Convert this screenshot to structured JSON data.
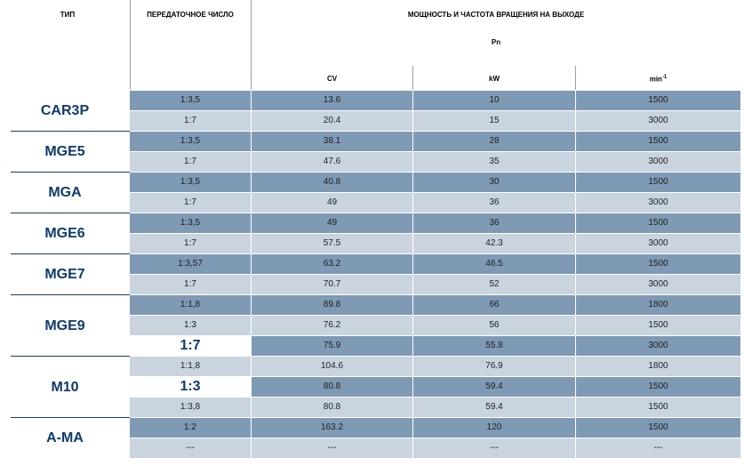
{
  "headers": {
    "type": "ТИП",
    "ratio": "ПЕРЕДАТОЧНОЕ ЧИСЛО",
    "power": "МОЩНОСТЬ И ЧАСТОТА ВРАЩЕНИЯ НА ВЫХОДЕ",
    "pn": "Pn",
    "cv": "CV",
    "kw": "kW",
    "min": "min",
    "min_sup": "-1"
  },
  "groups": [
    {
      "type": "CAR3P",
      "rows": [
        {
          "ratio": "1:3,5",
          "cv": "13.6",
          "kw": "10",
          "rpm": "1500",
          "shade": "dark"
        },
        {
          "ratio": "1:7",
          "cv": "20.4",
          "kw": "15",
          "rpm": "3000",
          "shade": "light"
        }
      ]
    },
    {
      "type": "MGE5",
      "rows": [
        {
          "ratio": "1:3,5",
          "cv": "38.1",
          "kw": "28",
          "rpm": "1500",
          "shade": "dark"
        },
        {
          "ratio": "1:7",
          "cv": "47.6",
          "kw": "35",
          "rpm": "3000",
          "shade": "light"
        }
      ]
    },
    {
      "type": "MGA",
      "rows": [
        {
          "ratio": "1:3,5",
          "cv": "40.8",
          "kw": "30",
          "rpm": "1500",
          "shade": "dark"
        },
        {
          "ratio": "1:7",
          "cv": "49",
          "kw": "36",
          "rpm": "3000",
          "shade": "light"
        }
      ]
    },
    {
      "type": "MGE6",
      "rows": [
        {
          "ratio": "1:3,5",
          "cv": "49",
          "kw": "36",
          "rpm": "1500",
          "shade": "dark"
        },
        {
          "ratio": "1:7",
          "cv": "57.5",
          "kw": "42.3",
          "rpm": "3000",
          "shade": "light"
        }
      ]
    },
    {
      "type": "MGE7",
      "rows": [
        {
          "ratio": "1:3,57",
          "cv": "63.2",
          "kw": "46.5",
          "rpm": "1500",
          "shade": "dark"
        },
        {
          "ratio": "1:7",
          "cv": "70.7",
          "kw": "52",
          "rpm": "3000",
          "shade": "light"
        }
      ]
    },
    {
      "type": "MGE9",
      "rows": [
        {
          "ratio": "1:1,8",
          "cv": "89.8",
          "kw": "66",
          "rpm": "1800",
          "shade": "dark"
        },
        {
          "ratio": "1:3",
          "cv": "76.2",
          "kw": "56",
          "rpm": "1500",
          "shade": "light"
        },
        {
          "ratio": "1:7",
          "cv": "75.9",
          "kw": "55.8",
          "rpm": "3000",
          "shade": "dark",
          "big": true
        }
      ]
    },
    {
      "type": "M10",
      "rows": [
        {
          "ratio": "1:1,8",
          "cv": "104.6",
          "kw": "76.9",
          "rpm": "1800",
          "shade": "light"
        },
        {
          "ratio": "1:3",
          "cv": "80.8",
          "kw": "59.4",
          "rpm": "1500",
          "shade": "dark",
          "big": true
        },
        {
          "ratio": "1:3,8",
          "cv": "80.8",
          "kw": "59.4",
          "rpm": "1500",
          "shade": "light"
        }
      ]
    },
    {
      "type": "A-MA",
      "rows": [
        {
          "ratio": "1:2",
          "cv": "163.2",
          "kw": "120",
          "rpm": "1500",
          "shade": "dark"
        },
        {
          "ratio": "---",
          "cv": "---",
          "kw": "---",
          "rpm": "---",
          "shade": "light"
        }
      ]
    }
  ]
}
